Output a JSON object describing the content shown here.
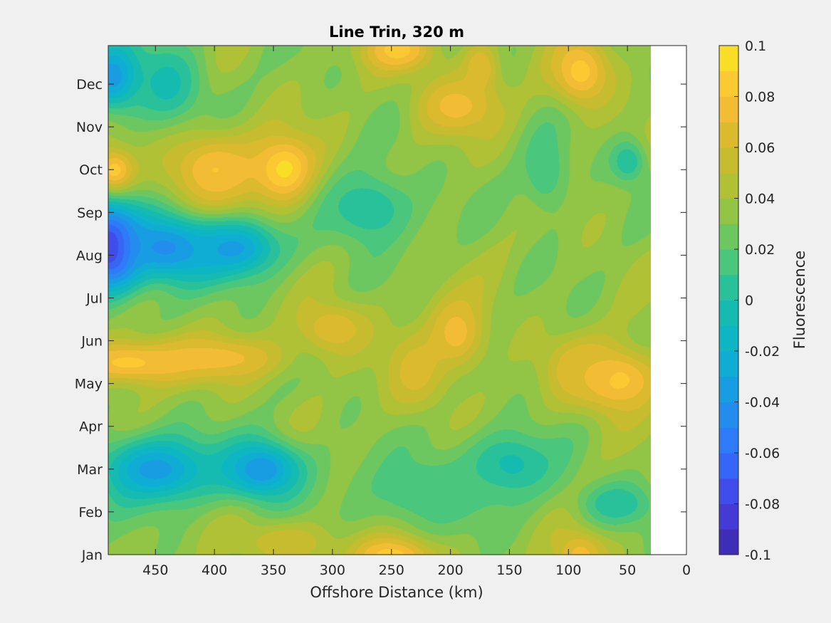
{
  "chart_data": {
    "type": "heatmap",
    "title": "Line Trin, 320 m",
    "xlabel": "Offshore Distance (km)",
    "ylabel": "",
    "xlim": [
      490,
      0
    ],
    "x_reversed": true,
    "x_ticks": [
      450,
      400,
      350,
      300,
      250,
      200,
      150,
      100,
      50,
      0
    ],
    "y_ticks": [
      "Jan",
      "Feb",
      "Mar",
      "Apr",
      "May",
      "Jun",
      "Jul",
      "Aug",
      "Sep",
      "Oct",
      "Nov",
      "Dec"
    ],
    "y_tick_positions": [
      1,
      2,
      3,
      4,
      5,
      6,
      7,
      8,
      9,
      10,
      11,
      12
    ],
    "ylim": [
      1,
      12.9
    ],
    "data_x_range": [
      490,
      30
    ],
    "colorbar": {
      "label": "Fluorescence",
      "range": [
        -0.1,
        0.1
      ],
      "levels": 20,
      "ticks": [
        "0.1",
        "0.08",
        "0.06",
        "0.04",
        "0.02",
        "0",
        "-0.02",
        "-0.04",
        "-0.06",
        "-0.08",
        "-0.1"
      ],
      "tick_values": [
        0.1,
        0.08,
        0.06,
        0.04,
        0.02,
        0,
        -0.02,
        -0.04,
        -0.06,
        -0.08,
        -0.1
      ]
    },
    "grid": false,
    "field_features": [
      {
        "x": 488,
        "y": 8.2,
        "value": -0.095,
        "rx": 28,
        "ry": 1.0
      },
      {
        "x": 440,
        "y": 8.2,
        "value": -0.045,
        "rx": 45,
        "ry": 0.8
      },
      {
        "x": 385,
        "y": 8.2,
        "value": -0.035,
        "rx": 40,
        "ry": 0.7
      },
      {
        "x": 485,
        "y": 12.2,
        "value": -0.04,
        "rx": 25,
        "ry": 0.8
      },
      {
        "x": 440,
        "y": 12.0,
        "value": -0.005,
        "rx": 30,
        "ry": 1.0
      },
      {
        "x": 485,
        "y": 10.0,
        "value": 0.085,
        "rx": 18,
        "ry": 0.5
      },
      {
        "x": 400,
        "y": 10.0,
        "value": 0.08,
        "rx": 40,
        "ry": 0.9
      },
      {
        "x": 340,
        "y": 10.0,
        "value": 0.095,
        "rx": 28,
        "ry": 0.8
      },
      {
        "x": 470,
        "y": 5.5,
        "value": 0.085,
        "rx": 60,
        "ry": 0.5
      },
      {
        "x": 400,
        "y": 5.6,
        "value": 0.075,
        "rx": 60,
        "ry": 0.5
      },
      {
        "x": 300,
        "y": 6.3,
        "value": 0.07,
        "rx": 30,
        "ry": 0.6
      },
      {
        "x": 245,
        "y": 12.8,
        "value": 0.085,
        "rx": 30,
        "ry": 0.5
      },
      {
        "x": 195,
        "y": 11.5,
        "value": 0.075,
        "rx": 35,
        "ry": 0.7
      },
      {
        "x": 230,
        "y": 5.3,
        "value": 0.065,
        "rx": 25,
        "ry": 0.9
      },
      {
        "x": 195,
        "y": 6.2,
        "value": 0.075,
        "rx": 25,
        "ry": 0.9
      },
      {
        "x": 60,
        "y": 5.1,
        "value": 0.085,
        "rx": 40,
        "ry": 0.8
      },
      {
        "x": 90,
        "y": 5.4,
        "value": 0.07,
        "rx": 25,
        "ry": 0.6
      },
      {
        "x": 90,
        "y": 12.3,
        "value": 0.085,
        "rx": 25,
        "ry": 0.8
      },
      {
        "x": 175,
        "y": 12.4,
        "value": 0.07,
        "rx": 15,
        "ry": 0.6
      },
      {
        "x": 250,
        "y": 1.0,
        "value": 0.09,
        "rx": 35,
        "ry": 0.5
      },
      {
        "x": 90,
        "y": 1.0,
        "value": 0.075,
        "rx": 22,
        "ry": 0.6
      },
      {
        "x": 340,
        "y": 1.3,
        "value": 0.06,
        "rx": 40,
        "ry": 0.5
      },
      {
        "x": 270,
        "y": 9.1,
        "value": 0.0,
        "rx": 40,
        "ry": 0.9
      },
      {
        "x": 450,
        "y": 3.0,
        "value": -0.035,
        "rx": 50,
        "ry": 0.8
      },
      {
        "x": 360,
        "y": 3.0,
        "value": -0.04,
        "rx": 35,
        "ry": 0.7
      },
      {
        "x": 150,
        "y": 3.1,
        "value": -0.005,
        "rx": 40,
        "ry": 0.8
      },
      {
        "x": 60,
        "y": 2.2,
        "value": 0.0,
        "rx": 30,
        "ry": 0.5
      },
      {
        "x": 120,
        "y": 10.0,
        "value": 0.01,
        "rx": 20,
        "ry": 1.0
      },
      {
        "x": 50,
        "y": 10.2,
        "value": 0.0,
        "rx": 15,
        "ry": 0.5
      },
      {
        "x": 220,
        "y": 2.5,
        "value": 0.01,
        "rx": 60,
        "ry": 0.9
      }
    ]
  }
}
